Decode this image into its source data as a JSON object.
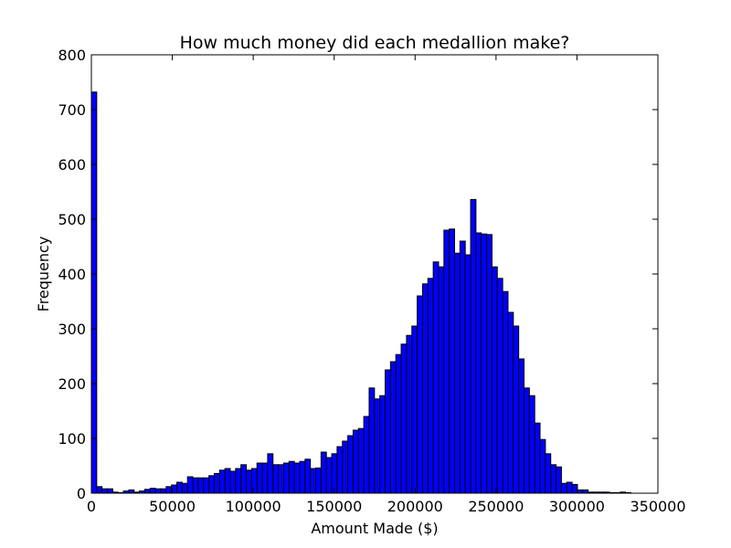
{
  "chart_data": {
    "type": "bar",
    "title": "How much money did each medallion make?",
    "xlabel": "Amount Made ($)",
    "ylabel": "Frequency",
    "xlim": [
      0,
      350000
    ],
    "ylim": [
      0,
      800
    ],
    "xticks": [
      "0",
      "50000",
      "100000",
      "150000",
      "200000",
      "250000",
      "300000",
      "350000"
    ],
    "yticks": [
      "0",
      "100",
      "200",
      "300",
      "400",
      "500",
      "600",
      "700",
      "800"
    ],
    "bin_width": 3300,
    "bin_start": 0,
    "bar_color": "#0000ff",
    "values": [
      732,
      12,
      8,
      8,
      2,
      1,
      4,
      6,
      2,
      4,
      7,
      9,
      8,
      8,
      12,
      15,
      20,
      18,
      30,
      28,
      28,
      28,
      32,
      36,
      42,
      45,
      40,
      45,
      52,
      42,
      45,
      55,
      55,
      72,
      52,
      52,
      55,
      58,
      55,
      58,
      62,
      45,
      46,
      75,
      65,
      72,
      85,
      95,
      105,
      115,
      118,
      140,
      192,
      172,
      178,
      225,
      240,
      253,
      272,
      288,
      305,
      360,
      382,
      392,
      422,
      413,
      480,
      482,
      438,
      460,
      435,
      536,
      475,
      473,
      472,
      413,
      392,
      368,
      330,
      305,
      245,
      192,
      178,
      128,
      98,
      72,
      52,
      48,
      18,
      20,
      16,
      6,
      6,
      2,
      2,
      2,
      2,
      1,
      1,
      2,
      1
    ]
  }
}
